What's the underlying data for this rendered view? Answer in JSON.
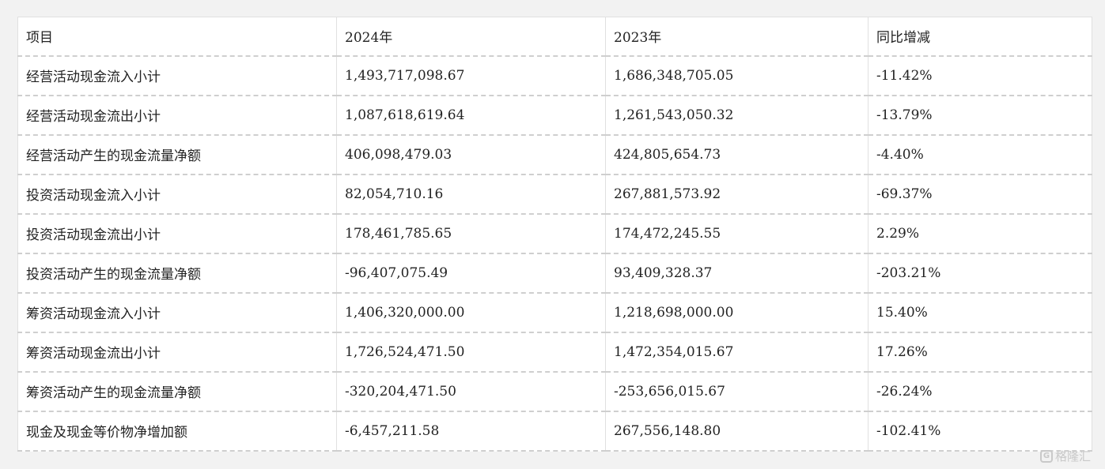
{
  "table": {
    "headers": [
      "项目",
      "2024年",
      "2023年",
      "同比增减"
    ],
    "rows": [
      [
        "经营活动现金流入小计",
        "1,493,717,098.67",
        "1,686,348,705.05",
        "-11.42%"
      ],
      [
        "经营活动现金流出小计",
        "1,087,618,619.64",
        "1,261,543,050.32",
        "-13.79%"
      ],
      [
        "经营活动产生的现金流量净额",
        "406,098,479.03",
        "424,805,654.73",
        "-4.40%"
      ],
      [
        "投资活动现金流入小计",
        "82,054,710.16",
        "267,881,573.92",
        "-69.37%"
      ],
      [
        "投资活动现金流出小计",
        "178,461,785.65",
        "174,472,245.55",
        "2.29%"
      ],
      [
        "投资活动产生的现金流量净额",
        "-96,407,075.49",
        "93,409,328.37",
        "-203.21%"
      ],
      [
        "筹资活动现金流入小计",
        "1,406,320,000.00",
        "1,218,698,000.00",
        "15.40%"
      ],
      [
        "筹资活动现金流出小计",
        "1,726,524,471.50",
        "1,472,354,015.67",
        "17.26%"
      ],
      [
        "筹资活动产生的现金流量净额",
        "-320,204,471.50",
        "-253,656,015.67",
        "-26.24%"
      ],
      [
        "现金及现金等价物净增加额",
        "-6,457,211.58",
        "267,556,148.80",
        "-102.41%"
      ]
    ]
  },
  "watermark": {
    "logo_glyph": "G",
    "text": "格隆汇"
  }
}
